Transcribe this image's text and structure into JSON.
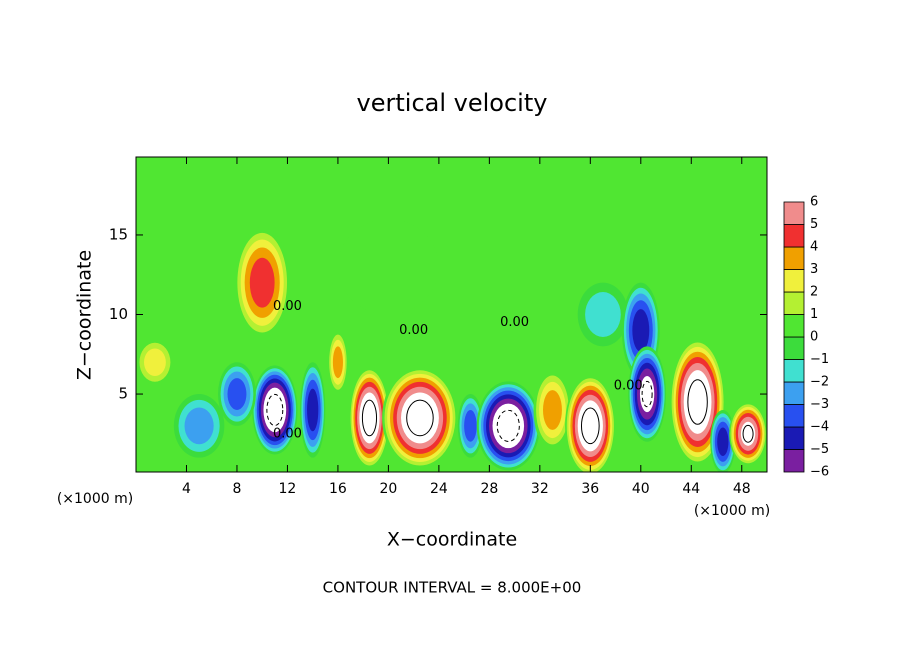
{
  "chart_data": {
    "type": "contour",
    "title": "vertical velocity",
    "x_label": "X−coordinate",
    "y_label": "Z−coordinate",
    "x_unit": "(×1000 m)",
    "x_unit_right": "(×1000 m)",
    "annotation": "CONTOUR INTERVAL = 8.000E+00",
    "xlim": [
      0,
      50
    ],
    "ylim": [
      0.1,
      19.9
    ],
    "xticks": [
      4,
      8,
      12,
      16,
      20,
      24,
      28,
      32,
      36,
      40,
      44,
      48
    ],
    "yticks": [
      5,
      10,
      15
    ],
    "colorbar": {
      "levels": [
        -6,
        -5,
        -4,
        -3,
        -2,
        -1,
        0,
        1,
        2,
        3,
        4,
        5,
        6
      ],
      "level_labels": [
        {
          "value": -6,
          "label": "−6"
        },
        {
          "value": -5,
          "label": "−5"
        },
        {
          "value": -4,
          "label": "−4"
        },
        {
          "value": -3,
          "label": "−3"
        },
        {
          "value": -2,
          "label": "−2"
        },
        {
          "value": -1,
          "label": "−1"
        },
        0,
        1,
        2,
        3,
        4,
        5,
        6
      ],
      "colors": [
        "#7a1fa0",
        "#1a1ab4",
        "#2850f0",
        "#3ca0f0",
        "#40e0d0",
        "#3cdc3c",
        "#50e632",
        "#b4f032",
        "#f0f03c",
        "#f0a000",
        "#f03030",
        "#f08c8c"
      ],
      "over_color": "#ffffff",
      "under_color": "#ffffff"
    },
    "background_value": 0.5,
    "field_extrema": [
      {
        "x": 10,
        "z": 12,
        "value": 5,
        "rx": 2.2,
        "rz": 3.5
      },
      {
        "x": 11,
        "z": 4,
        "value": -8,
        "rx": 1.8,
        "rz": 2.8
      },
      {
        "x": 8,
        "z": 5,
        "value": -4,
        "rx": 1.5,
        "rz": 2
      },
      {
        "x": 5,
        "z": 3,
        "value": -3,
        "rx": 2,
        "rz": 2
      },
      {
        "x": 1.5,
        "z": 7,
        "value": 3,
        "rx": 1.5,
        "rz": 1.5
      },
      {
        "x": 14,
        "z": 4,
        "value": -5,
        "rx": 1,
        "rz": 3
      },
      {
        "x": 16,
        "z": 7,
        "value": 4,
        "rx": 0.8,
        "rz": 2
      },
      {
        "x": 18.5,
        "z": 3.5,
        "value": 8,
        "rx": 1.6,
        "rz": 3.2
      },
      {
        "x": 22.5,
        "z": 3.5,
        "value": 8,
        "rx": 3,
        "rz": 3.2
      },
      {
        "x": 26.5,
        "z": 3,
        "value": -4,
        "rx": 1,
        "rz": 2
      },
      {
        "x": 29.5,
        "z": 3,
        "value": -8,
        "rx": 2.5,
        "rz": 2.8
      },
      {
        "x": 33,
        "z": 4,
        "value": 4,
        "rx": 1.5,
        "rz": 2.5
      },
      {
        "x": 36,
        "z": 3,
        "value": 8,
        "rx": 2,
        "rz": 3.2
      },
      {
        "x": 37,
        "z": 10,
        "value": -2,
        "rx": 2,
        "rz": 2
      },
      {
        "x": 40,
        "z": 9,
        "value": -5,
        "rx": 1.5,
        "rz": 3
      },
      {
        "x": 40.5,
        "z": 5,
        "value": -7,
        "rx": 1.5,
        "rz": 3
      },
      {
        "x": 44.5,
        "z": 4.5,
        "value": 8,
        "rx": 2.2,
        "rz": 4
      },
      {
        "x": 46.5,
        "z": 2,
        "value": -5,
        "rx": 1,
        "rz": 2
      },
      {
        "x": 48.5,
        "z": 2.5,
        "value": 7,
        "rx": 1.5,
        "rz": 2
      },
      {
        "x": 20,
        "z": 13,
        "value": 1,
        "rx": 4,
        "rz": 3
      }
    ],
    "contour_labels": [
      {
        "text": "0.00",
        "x": 12,
        "z": 10.5
      },
      {
        "text": "0.00",
        "x": 12,
        "z": 2.5
      },
      {
        "x": 22,
        "z": 9,
        "text": "0.00"
      },
      {
        "x": 30,
        "z": 9.5,
        "text": "0.00"
      },
      {
        "x": 39,
        "z": 5.5,
        "text": "0.00"
      }
    ]
  }
}
